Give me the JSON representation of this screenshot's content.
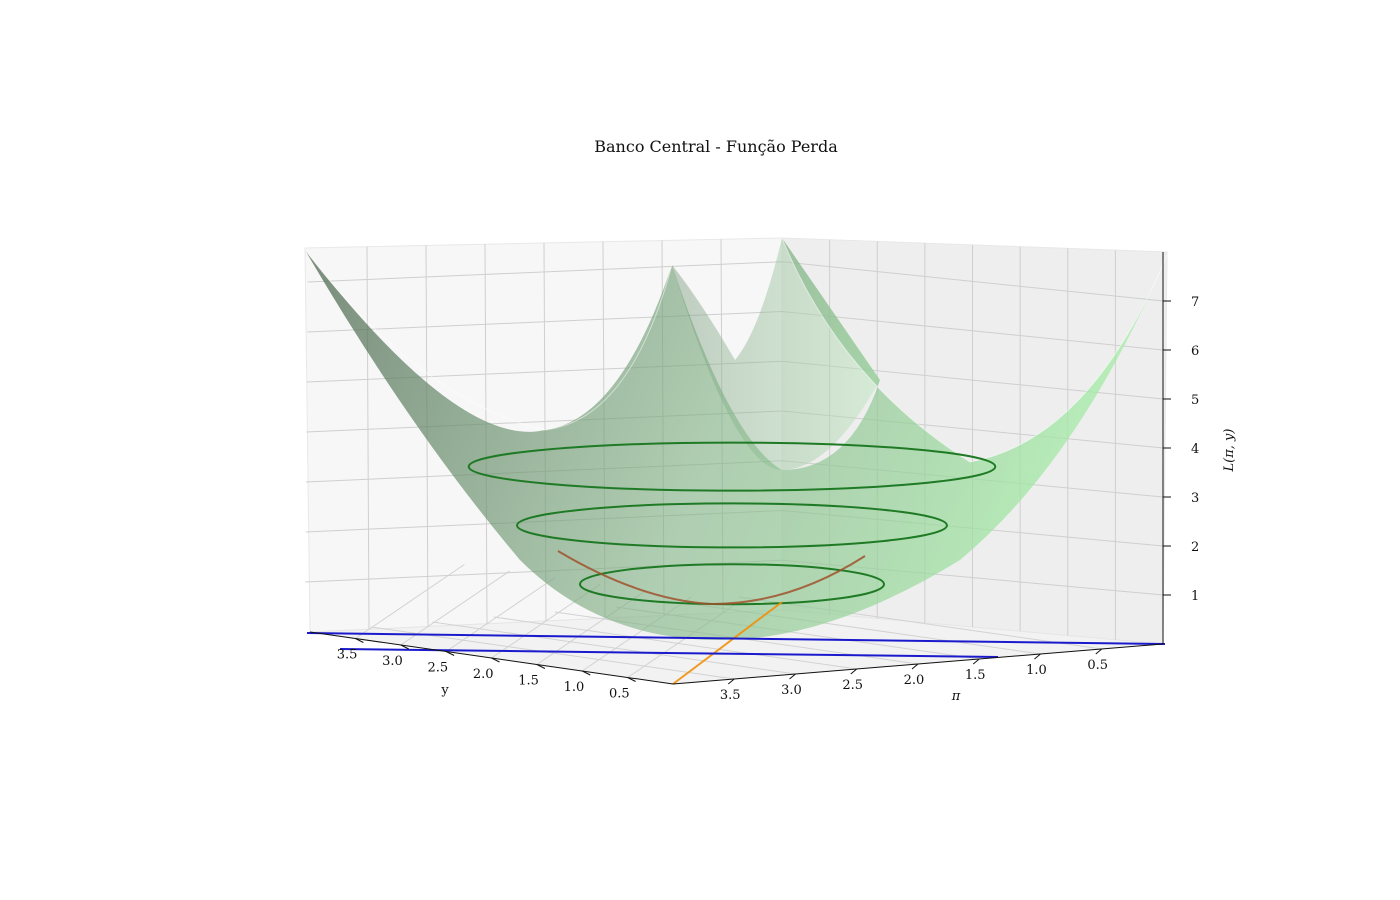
{
  "chart_data": {
    "type": "surface3d",
    "title": "Banco Central - Função Perda",
    "xlabel": "y",
    "ylabel": "π",
    "zlabel": "L(π, y)",
    "x_ticks": [
      "0.5",
      "1.0",
      "1.5",
      "2.0",
      "2.5",
      "3.0",
      "3.5"
    ],
    "y_ticks": [
      "0.5",
      "1.0",
      "1.5",
      "2.0",
      "2.5",
      "3.0",
      "3.5"
    ],
    "z_ticks": [
      "1",
      "2",
      "3",
      "4",
      "5",
      "6",
      "7"
    ],
    "xlim": [
      0,
      4
    ],
    "ylim": [
      0,
      4
    ],
    "zlim": [
      0,
      8
    ],
    "surface": {
      "function": "L = (π - 2)^2 + (y - 2)^2",
      "colormap": [
        "#4d6650",
        "#a6f0a8"
      ],
      "alpha": 0.55
    },
    "contours": {
      "levels": [
        1,
        2,
        3
      ],
      "color": "#1f7a25"
    },
    "curves": [
      {
        "color": "#a0522d",
        "kind": "section of the surface"
      },
      {
        "color": "#f0900c",
        "kind": "line on the floor"
      },
      {
        "color": "#1a1acc",
        "kind": "line on the floor"
      },
      {
        "color": "#1a1acc",
        "kind": "line on the floor"
      }
    ],
    "grid": true
  }
}
